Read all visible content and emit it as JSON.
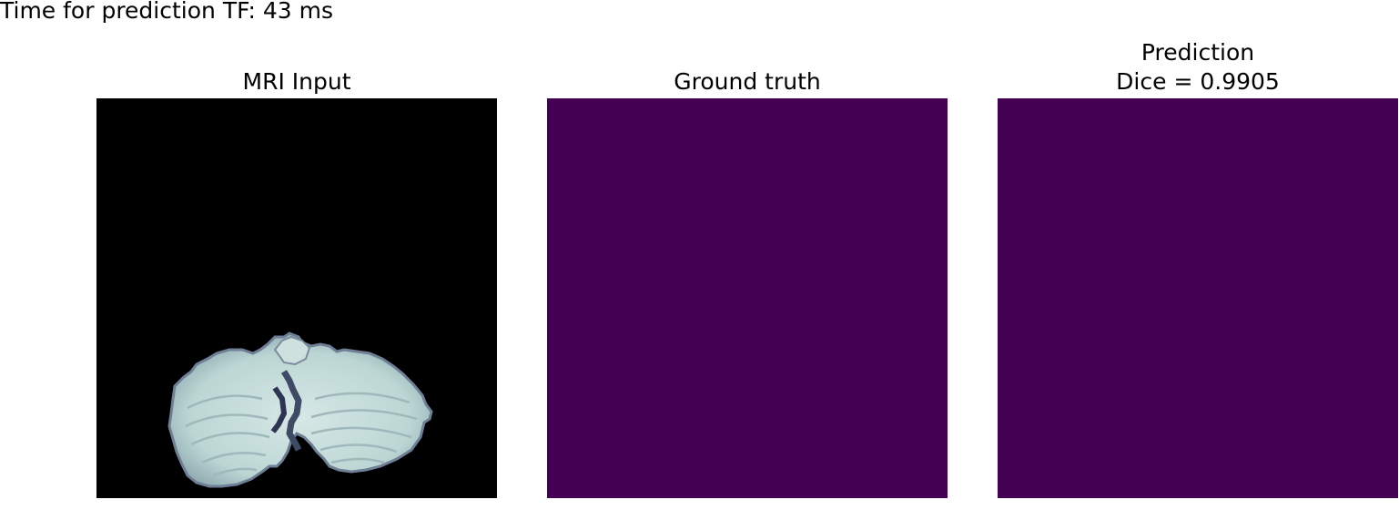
{
  "figure": {
    "suptitle": "Time for prediction TF: 43 ms"
  },
  "panels": [
    {
      "title": "MRI Input",
      "image": "grayscale MRI slice",
      "background_color": "#000000",
      "tissue_color": "#c7dedd"
    },
    {
      "title": "Ground truth",
      "image": "segmentation mask",
      "fill_color": "#440154"
    },
    {
      "title_lines": [
        "Prediction",
        "Dice = 0.9905"
      ],
      "image": "predicted segmentation mask",
      "fill_color": "#440154"
    }
  ]
}
